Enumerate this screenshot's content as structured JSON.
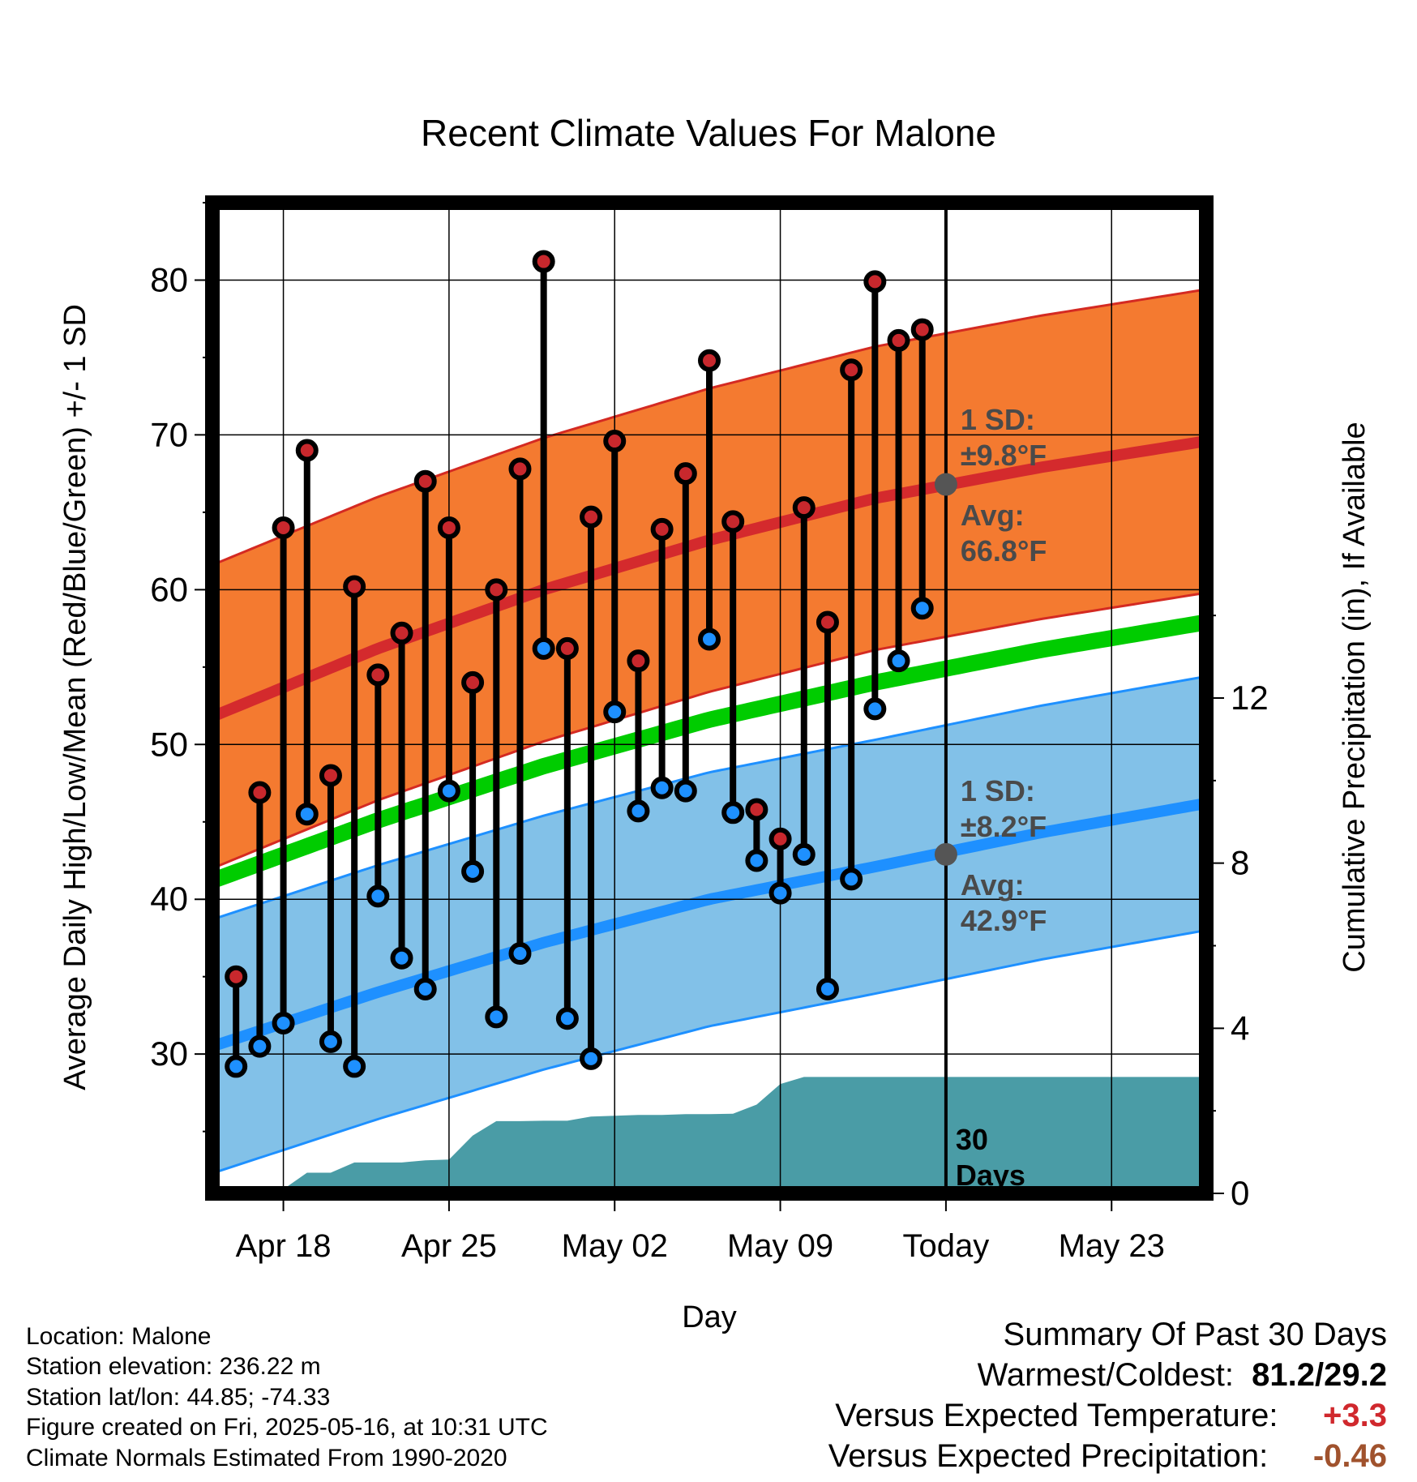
{
  "chart_data": {
    "type": "line",
    "title": "Recent Climate Values For Malone",
    "xlabel": "Day",
    "ylabel": "Average Daily High/Low/Mean (Red/Blue/Green) +/- 1 SD",
    "y2label": "Cumulative Precipitation (in), If Available",
    "ylim": [
      21,
      85
    ],
    "y2lim": [
      0,
      24
    ],
    "yticks": [
      30,
      40,
      50,
      60,
      70,
      80
    ],
    "y2ticks": [
      0,
      4,
      8,
      12
    ],
    "x_start": "2025-04-15",
    "x_end": "2025-05-27",
    "today": "2025-05-16",
    "xtick_labels": [
      {
        "date": "2025-04-18",
        "label": "Apr 18"
      },
      {
        "date": "2025-04-25",
        "label": "Apr 25"
      },
      {
        "date": "2025-05-02",
        "label": "May 02"
      },
      {
        "date": "2025-05-09",
        "label": "May 09"
      },
      {
        "date": "2025-05-16",
        "label": "Today"
      },
      {
        "date": "2025-05-23",
        "label": "May 23"
      }
    ],
    "grid": true,
    "days": [
      "2025-04-16",
      "2025-04-17",
      "2025-04-18",
      "2025-04-19",
      "2025-04-20",
      "2025-04-21",
      "2025-04-22",
      "2025-04-23",
      "2025-04-24",
      "2025-04-25",
      "2025-04-26",
      "2025-04-27",
      "2025-04-28",
      "2025-04-29",
      "2025-04-30",
      "2025-05-01",
      "2025-05-02",
      "2025-05-03",
      "2025-05-04",
      "2025-05-05",
      "2025-05-06",
      "2025-05-07",
      "2025-05-08",
      "2025-05-09",
      "2025-05-10",
      "2025-05-11",
      "2025-05-12",
      "2025-05-13",
      "2025-05-14",
      "2025-05-15"
    ],
    "series": [
      {
        "name": "High",
        "color": "#c8282d",
        "values": [
          35.0,
          46.9,
          64.0,
          69.0,
          48.0,
          60.2,
          54.5,
          57.2,
          67.0,
          64.0,
          54.0,
          60.0,
          67.8,
          81.2,
          56.2,
          64.7,
          69.6,
          55.4,
          63.9,
          67.5,
          74.8,
          64.4,
          45.8,
          43.9,
          65.3,
          57.9,
          74.2,
          79.9,
          76.1,
          76.8
        ]
      },
      {
        "name": "Low",
        "color": "#1e90ff",
        "values": [
          29.2,
          30.5,
          32.0,
          45.5,
          30.8,
          29.2,
          40.2,
          36.2,
          34.2,
          47.0,
          41.8,
          32.4,
          36.5,
          56.2,
          32.3,
          29.7,
          52.1,
          45.7,
          47.2,
          47.0,
          56.8,
          45.6,
          42.5,
          40.4,
          42.9,
          34.2,
          41.3,
          52.3,
          55.4,
          58.8
        ]
      },
      {
        "name": "Normal High",
        "color": "#c8282d",
        "x": [
          "2025-04-15",
          "2025-04-22",
          "2025-04-29",
          "2025-05-06",
          "2025-05-13",
          "2025-05-20",
          "2025-05-27"
        ],
        "values": [
          51.8,
          56.2,
          60.0,
          63.2,
          65.9,
          67.9,
          69.6
        ],
        "sd": 9.8
      },
      {
        "name": "Normal Low",
        "color": "#1e90ff",
        "x": [
          "2025-04-15",
          "2025-04-22",
          "2025-04-29",
          "2025-05-06",
          "2025-05-13",
          "2025-05-20",
          "2025-05-27"
        ],
        "values": [
          30.5,
          34.0,
          37.2,
          40.0,
          42.1,
          44.3,
          46.2
        ],
        "sd": 8.2
      },
      {
        "name": "Normal Mean",
        "color": "#00cc00",
        "x": [
          "2025-04-15",
          "2025-04-22",
          "2025-04-29",
          "2025-05-06",
          "2025-05-13",
          "2025-05-20",
          "2025-05-27"
        ],
        "values": [
          41.2,
          45.1,
          48.6,
          51.6,
          54.0,
          56.1,
          57.9
        ]
      },
      {
        "name": "Cumulative Precipitation",
        "color": "#4a9ca6",
        "x": [
          "2025-04-15",
          "2025-04-15",
          "2025-04-17",
          "2025-04-18",
          "2025-04-19",
          "2025-04-20",
          "2025-04-21",
          "2025-04-22",
          "2025-04-23",
          "2025-04-24",
          "2025-04-25",
          "2025-04-26",
          "2025-04-27",
          "2025-04-28",
          "2025-04-29",
          "2025-04-30",
          "2025-05-01",
          "2025-05-02",
          "2025-05-03",
          "2025-05-04",
          "2025-05-05",
          "2025-05-06",
          "2025-05-07",
          "2025-05-08",
          "2025-05-09",
          "2025-05-10",
          "2025-05-11",
          "2025-05-12",
          "2025-05-27",
          "2025-05-27"
        ],
        "values": [
          0,
          0,
          0,
          0.1,
          0.5,
          0.5,
          0.75,
          0.75,
          0.75,
          0.8,
          0.82,
          1.4,
          1.75,
          1.75,
          1.76,
          1.76,
          1.86,
          1.88,
          1.9,
          1.9,
          1.92,
          1.92,
          1.93,
          2.15,
          2.65,
          2.82,
          2.82,
          2.82,
          2.82,
          0
        ]
      }
    ],
    "annotations": {
      "high_sd_label": "1 SD:",
      "high_sd_value": "±9.8°F",
      "high_avg_label": "Avg:",
      "high_avg_value": "66.8°F",
      "high_avg_marker": 66.8,
      "low_sd_label": "1 SD:",
      "low_sd_value": "±8.2°F",
      "low_avg_label": "Avg:",
      "low_avg_value": "42.9°F",
      "low_avg_marker": 42.9,
      "period_line1": "30",
      "period_line2": "Days"
    }
  },
  "footer": {
    "location": "Location: Malone",
    "elevation": "Station elevation: 236.22 m",
    "latlon": "Station lat/lon: 44.85; -74.33",
    "created": "Figure created on Fri, 2025-05-16, at 10:31 UTC",
    "normals": "Climate Normals Estimated From 1990-2020"
  },
  "summary": {
    "title": "Summary Of Past 30 Days",
    "warm_cold_label": "Warmest/Coldest:",
    "warm_cold_value": "81.2/29.2",
    "temp_label": "Versus Expected Temperature:",
    "temp_value": "+3.3",
    "temp_color": "#d0282d",
    "precip_label": "Versus Expected Precipitation:",
    "precip_value": "-0.46",
    "precip_color": "#a0522d"
  }
}
